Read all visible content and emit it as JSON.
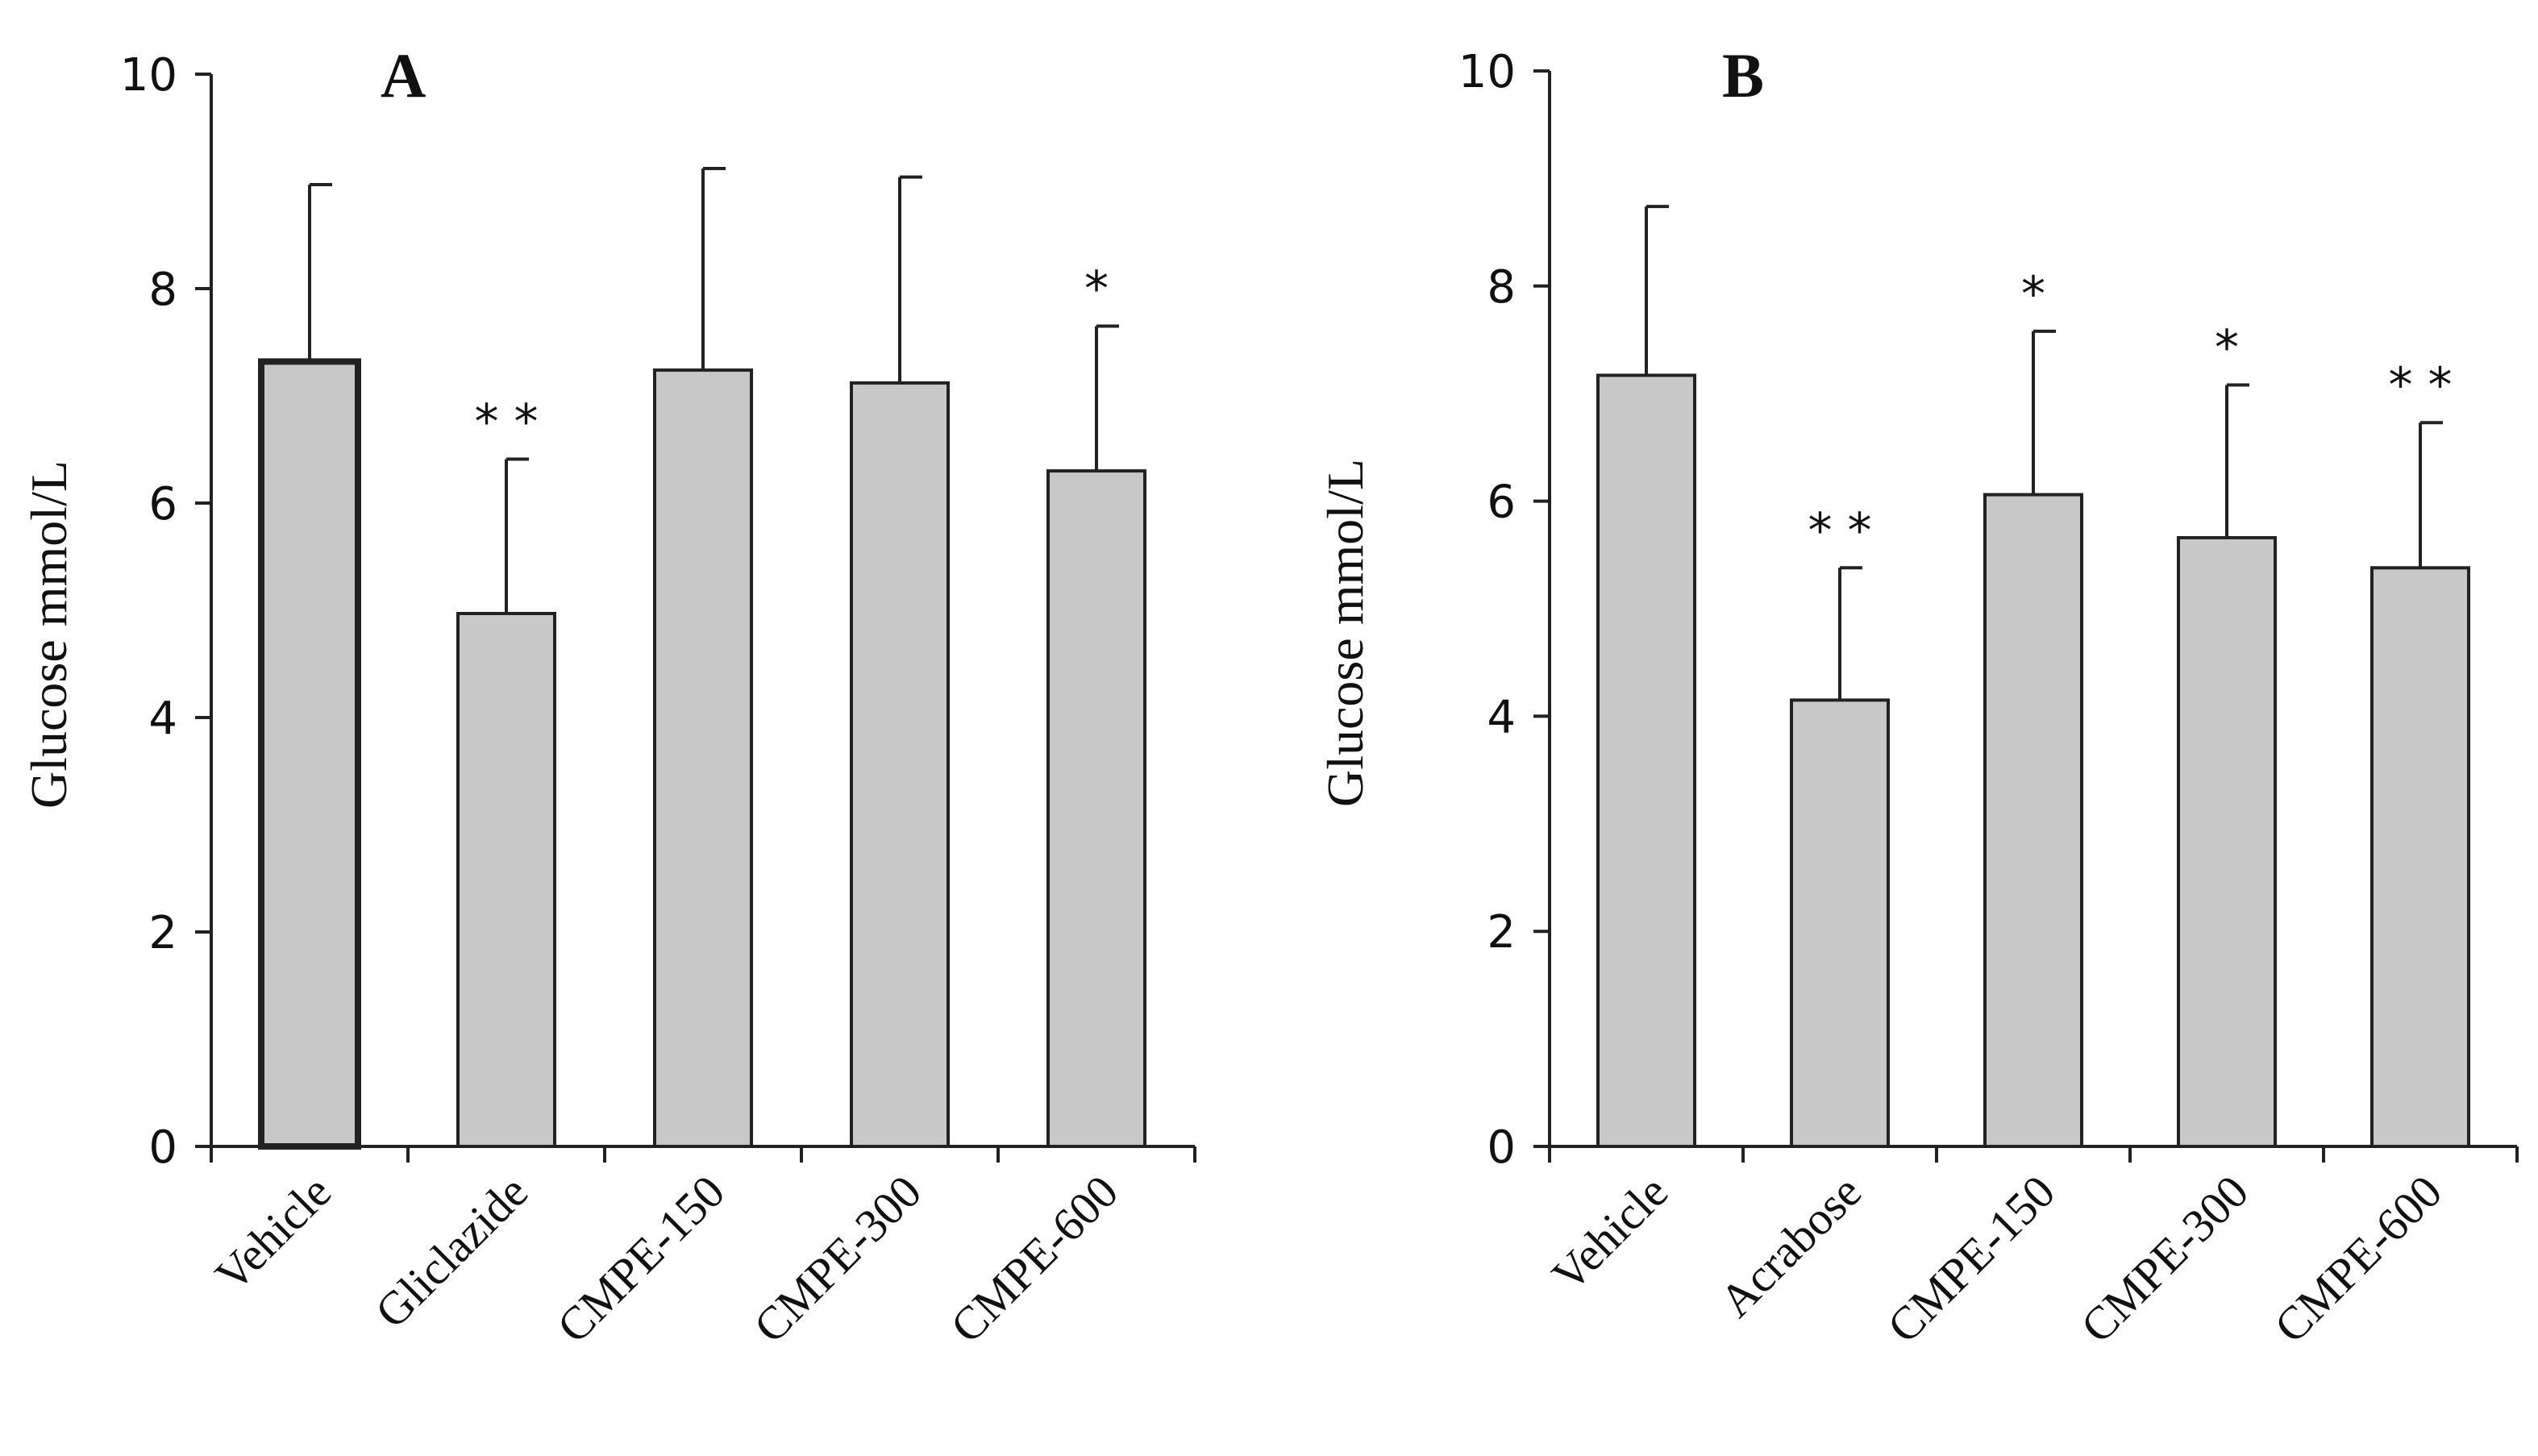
{
  "chart_data": [
    {
      "type": "bar",
      "panel": "A",
      "ylabel": "Glucose mmol/L",
      "ylim": [
        0,
        10
      ],
      "yticks": [
        0,
        2,
        4,
        6,
        8,
        10
      ],
      "categories": [
        "Vehicle",
        "Gliclazide",
        "CMPE-150",
        "CMPE-300",
        "CMPE-600"
      ],
      "values": [
        7.32,
        4.97,
        7.24,
        7.12,
        6.3
      ],
      "errors": [
        1.65,
        1.44,
        1.88,
        1.92,
        1.35
      ],
      "significance": [
        "",
        "**",
        "",
        "",
        "*"
      ],
      "bar_color": "#c8c8c8",
      "highlight_index": 0
    },
    {
      "type": "bar",
      "panel": "B",
      "ylabel": "Glucose mmol/L",
      "ylim": [
        0,
        10
      ],
      "yticks": [
        0,
        2,
        4,
        6,
        8,
        10
      ],
      "categories": [
        "Vehicle",
        "Acrabose",
        "CMPE-150",
        "CMPE-300",
        "CMPE-600"
      ],
      "values": [
        7.17,
        4.15,
        6.06,
        5.66,
        5.38
      ],
      "errors": [
        1.57,
        1.23,
        1.52,
        1.42,
        1.35
      ],
      "significance": [
        "",
        "**",
        "*",
        "*",
        "**"
      ],
      "bar_color": "#c8c8c8",
      "highlight_index": -1
    }
  ]
}
